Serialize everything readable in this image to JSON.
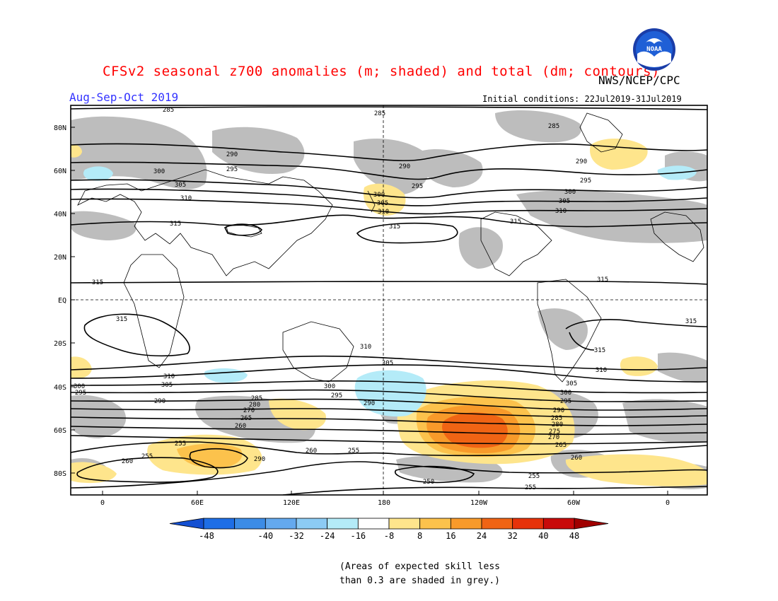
{
  "header": {
    "title": "CFSv2 seasonal z700 anomalies (m; shaded) and total (dm; contours)",
    "agency": "NWS/NCEP/CPC",
    "season": "Aug-Sep-Oct 2019",
    "initial_conditions": "Initial conditions: 22Jul2019-31Jul2019",
    "logo_text": "NOAA"
  },
  "axes": {
    "lat_labels": [
      "80N",
      "60N",
      "40N",
      "20N",
      "EQ",
      "20S",
      "40S",
      "60S",
      "80S"
    ],
    "lon_labels": [
      "0",
      "60E",
      "120E",
      "180",
      "120W",
      "60W",
      "0"
    ]
  },
  "colorbar": {
    "tick_labels": [
      "-48",
      "-40",
      "-32",
      "-24",
      "-16",
      "-8",
      "8",
      "16",
      "24",
      "32",
      "40",
      "48"
    ],
    "colors": [
      "#1e6ee6",
      "#3c8ce6",
      "#64a9ee",
      "#8ccbf4",
      "#b4ebf8",
      "#ffffff",
      "#fee58c",
      "#fcc24c",
      "#f89a2a",
      "#f06414",
      "#e6320a",
      "#c80a0a"
    ],
    "low_arrow_color": "#1450d2",
    "high_arrow_color": "#a00000"
  },
  "contour_labels": [
    "285",
    "290",
    "295",
    "300",
    "305",
    "310",
    "315",
    "260",
    "265",
    "270",
    "275",
    "280",
    "255",
    "250"
  ],
  "note": {
    "line1": "(Areas of expected skill less",
    "line2": "than 0.3 are shaded in grey.)"
  },
  "colors": {
    "grey_skill": "#bdbdbd",
    "title": "#ff0000",
    "season": "#3333ff"
  }
}
